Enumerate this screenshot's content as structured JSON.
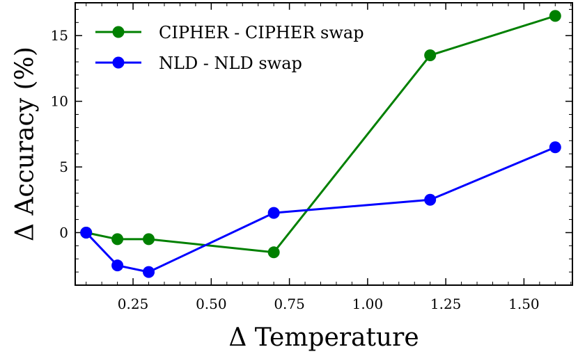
{
  "chart_data": {
    "type": "line",
    "title": "",
    "xlabel": "Δ Temperature",
    "ylabel": "Δ Accuracy (%)",
    "xlim": [
      0.065,
      1.655
    ],
    "ylim": [
      -4,
      17.5
    ],
    "xticks": [
      0.25,
      0.5,
      0.75,
      1.0,
      1.25,
      1.5
    ],
    "xtick_labels": [
      "0.25",
      "0.50",
      "0.75",
      "1.00",
      "1.25",
      "1.50"
    ],
    "yticks": [
      0,
      5,
      10,
      15
    ],
    "ytick_labels": [
      "0",
      "5",
      "10",
      "15"
    ],
    "grid": false,
    "legend_position": "top-left",
    "series": [
      {
        "name": "CIPHER - CIPHER swap",
        "color": "#008000",
        "x": [
          0.1,
          0.2,
          0.3,
          0.7,
          1.2,
          1.6
        ],
        "y": [
          0.0,
          -0.5,
          -0.5,
          -1.5,
          13.5,
          16.5
        ]
      },
      {
        "name": "NLD - NLD swap",
        "color": "#0000ff",
        "x": [
          0.1,
          0.2,
          0.3,
          0.7,
          1.2,
          1.6
        ],
        "y": [
          0.0,
          -2.5,
          -3.0,
          1.5,
          2.5,
          6.5
        ]
      }
    ]
  }
}
